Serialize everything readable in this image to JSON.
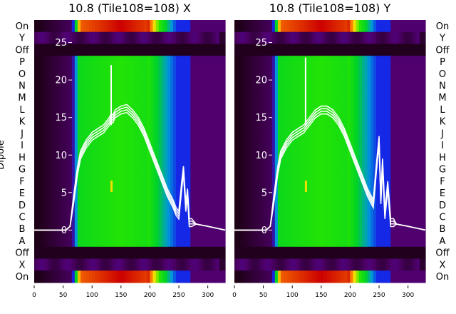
{
  "chart_data": [
    {
      "type": "heatmap",
      "title": "10.8 (Tile108=108) X",
      "ylabel": "Dipole",
      "x_ticks": [
        0,
        50,
        100,
        150,
        200,
        250,
        300
      ],
      "xlim": [
        0,
        330
      ],
      "rows_top_to_bottom": [
        "On",
        "Y",
        "Off",
        "P",
        "O",
        "N",
        "M",
        "L",
        "K",
        "J",
        "I",
        "H",
        "G",
        "F",
        "E",
        "D",
        "C",
        "B",
        "A",
        "Off",
        "X",
        "On"
      ],
      "overlay_ylim": [
        -7,
        28
      ],
      "overlay_y_ticks": [
        0,
        5,
        10,
        15,
        20,
        25
      ],
      "overlay_spectrum": {
        "x": [
          0,
          30,
          55,
          62,
          68,
          75,
          80,
          90,
          100,
          110,
          120,
          125,
          130,
          133,
          136,
          140,
          150,
          160,
          170,
          180,
          190,
          200,
          210,
          220,
          230,
          240,
          245,
          250,
          255,
          258,
          262,
          265,
          268,
          272,
          280,
          300,
          330
        ],
        "y": [
          0,
          0,
          0,
          0.5,
          4,
          8,
          10,
          11.5,
          12.5,
          13,
          13.5,
          14,
          14.5,
          15,
          14.8,
          15.5,
          16,
          16.2,
          15.5,
          14.5,
          13,
          11,
          9,
          7,
          5,
          3.5,
          2.5,
          2,
          6,
          8,
          3,
          5,
          1,
          1,
          0.8,
          0.5,
          0
        ]
      },
      "overlay_spike": {
        "x": 133,
        "y": 22
      },
      "colors": {
        "heat_hot": "#cc0000",
        "heat_mid": "#00dd00",
        "heat_low": "#0033ee",
        "heat_bg": "#1a0010",
        "overlay": "#ffffff"
      }
    },
    {
      "type": "heatmap",
      "title": "10.8 (Tile108=108) Y",
      "ylabel": "Dipole",
      "x_ticks": [
        0,
        50,
        100,
        150,
        200,
        250,
        300
      ],
      "xlim": [
        0,
        330
      ],
      "rows_top_to_bottom": [
        "On",
        "Y",
        "Off",
        "P",
        "O",
        "N",
        "M",
        "L",
        "K",
        "J",
        "I",
        "H",
        "G",
        "F",
        "E",
        "D",
        "C",
        "B",
        "A",
        "Off",
        "X",
        "On"
      ],
      "overlay_ylim": [
        -7,
        28
      ],
      "overlay_y_ticks": [
        0,
        5,
        10,
        15,
        20,
        25
      ],
      "overlay_spectrum": {
        "x": [
          0,
          30,
          55,
          62,
          68,
          75,
          80,
          90,
          100,
          110,
          120,
          125,
          130,
          140,
          150,
          160,
          170,
          180,
          190,
          200,
          210,
          220,
          230,
          240,
          245,
          250,
          253,
          256,
          260,
          265,
          270,
          275,
          280,
          300,
          330
        ],
        "y": [
          0,
          0,
          0,
          0.5,
          4,
          8,
          10,
          11.5,
          12.5,
          13,
          13.5,
          14,
          14.5,
          15.5,
          16,
          16,
          15.5,
          14.5,
          13,
          11,
          9,
          7,
          5,
          3.5,
          8,
          12,
          4,
          9,
          2,
          6,
          1,
          1,
          0.8,
          0.5,
          0
        ]
      },
      "overlay_spike": {
        "x": 123,
        "y": 23
      },
      "colors": {
        "heat_hot": "#cc0000",
        "heat_mid": "#00dd00",
        "heat_low": "#0033ee",
        "heat_bg": "#1a0010",
        "overlay": "#ffffff"
      }
    }
  ]
}
